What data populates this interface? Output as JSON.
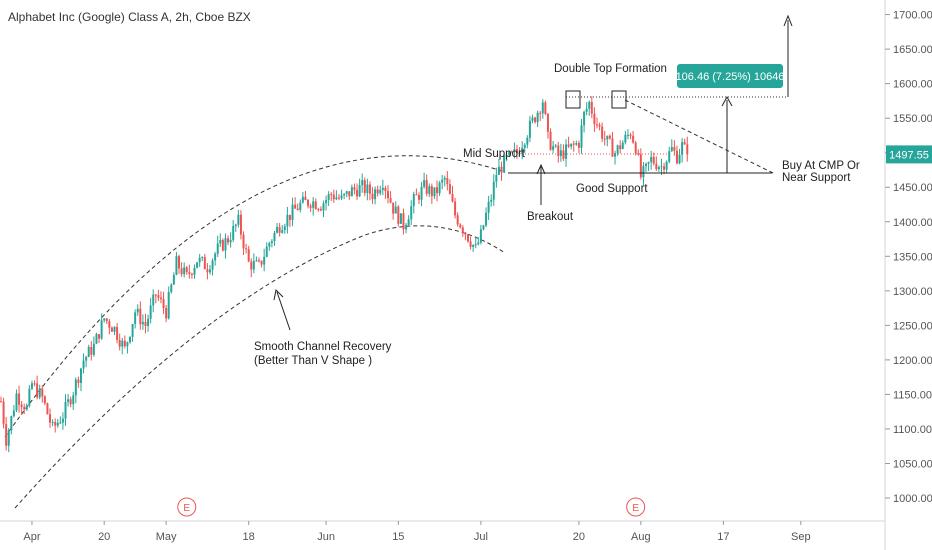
{
  "header": {
    "title": "Alphabet Inc (Google) Class A, 2h, Cboe BZX"
  },
  "chart_data": {
    "type": "candlestick",
    "title": "Alphabet Inc (Google) Class A, 2h, Cboe BZX",
    "ylim": [
      975,
      1740
    ],
    "y_ticks": [
      1000,
      1050,
      1100,
      1150,
      1200,
      1250,
      1300,
      1350,
      1400,
      1450,
      1500,
      1550,
      1600,
      1650,
      1700
    ],
    "x_ticks": [
      {
        "label": "Apr",
        "day": 6
      },
      {
        "label": "20",
        "day": 20
      },
      {
        "label": "May",
        "day": 32
      },
      {
        "label": "18",
        "day": 48
      },
      {
        "label": "Jun",
        "day": 63
      },
      {
        "label": "15",
        "day": 77
      },
      {
        "label": "Jul",
        "day": 93
      },
      {
        "label": "20",
        "day": 112
      },
      {
        "label": "Aug",
        "day": 124
      },
      {
        "label": "17",
        "day": 140
      },
      {
        "label": "Sep",
        "day": 155
      }
    ],
    "x_range_days": [
      0,
      163
    ],
    "current_price": "1497.55",
    "current_price_value": 1497.55,
    "measurement_label": "106.46 (7.25%) 10646",
    "earnings_markers": [
      {
        "label": "E",
        "day": 36
      },
      {
        "label": "E",
        "day": 123
      }
    ],
    "price_path": [
      [
        0,
        1140
      ],
      [
        1,
        1085
      ],
      [
        2,
        1115
      ],
      [
        3,
        1150
      ],
      [
        5,
        1130
      ],
      [
        6,
        1165
      ],
      [
        8,
        1145
      ],
      [
        10,
        1100
      ],
      [
        12,
        1120
      ],
      [
        14,
        1155
      ],
      [
        16,
        1200
      ],
      [
        18,
        1220
      ],
      [
        20,
        1260
      ],
      [
        22,
        1245
      ],
      [
        24,
        1215
      ],
      [
        26,
        1270
      ],
      [
        28,
        1250
      ],
      [
        30,
        1295
      ],
      [
        32,
        1270
      ],
      [
        34,
        1340
      ],
      [
        36,
        1320
      ],
      [
        38,
        1345
      ],
      [
        40,
        1335
      ],
      [
        42,
        1360
      ],
      [
        44,
        1375
      ],
      [
        46,
        1400
      ],
      [
        48,
        1340
      ],
      [
        50,
        1335
      ],
      [
        52,
        1370
      ],
      [
        54,
        1395
      ],
      [
        56,
        1410
      ],
      [
        58,
        1425
      ],
      [
        60,
        1430
      ],
      [
        62,
        1425
      ],
      [
        64,
        1440
      ],
      [
        66,
        1432
      ],
      [
        68,
        1445
      ],
      [
        70,
        1450
      ],
      [
        72,
        1440
      ],
      [
        74,
        1460
      ],
      [
        76,
        1420
      ],
      [
        78,
        1395
      ],
      [
        80,
        1430
      ],
      [
        82,
        1450
      ],
      [
        84,
        1440
      ],
      [
        86,
        1462
      ],
      [
        88,
        1410
      ],
      [
        90,
        1385
      ],
      [
        92,
        1360
      ],
      [
        93,
        1380
      ],
      [
        94,
        1410
      ],
      [
        95,
        1435
      ],
      [
        96,
        1470
      ],
      [
        98,
        1490
      ],
      [
        100,
        1500
      ],
      [
        102,
        1530
      ],
      [
        104,
        1560
      ],
      [
        105,
        1576
      ],
      [
        106,
        1520
      ],
      [
        108,
        1495
      ],
      [
        110,
        1505
      ],
      [
        112,
        1515
      ],
      [
        113,
        1555
      ],
      [
        114,
        1572
      ],
      [
        115,
        1550
      ],
      [
        117,
        1520
      ],
      [
        119,
        1500
      ],
      [
        121,
        1520
      ],
      [
        122,
        1530
      ],
      [
        123,
        1510
      ],
      [
        124,
        1465
      ],
      [
        125,
        1475
      ],
      [
        126,
        1490
      ],
      [
        128,
        1480
      ],
      [
        130,
        1505
      ],
      [
        131,
        1495
      ],
      [
        132,
        1510
      ],
      [
        133,
        1497.55
      ]
    ],
    "annotations": [
      {
        "text": "Double Top Formation"
      },
      {
        "text": "Mid Support"
      },
      {
        "text": "Good Support"
      },
      {
        "text": "Breakout"
      },
      {
        "text": "Buy At CMP Or"
      },
      {
        "text": "Near Support"
      },
      {
        "text": "Smooth Channel Recovery"
      },
      {
        "text": "(Better Than V Shape )"
      }
    ],
    "colors": {
      "up": "#26a69a",
      "down": "#ef5350",
      "badge": "#26a69a",
      "earnings": "#ef5350"
    }
  }
}
